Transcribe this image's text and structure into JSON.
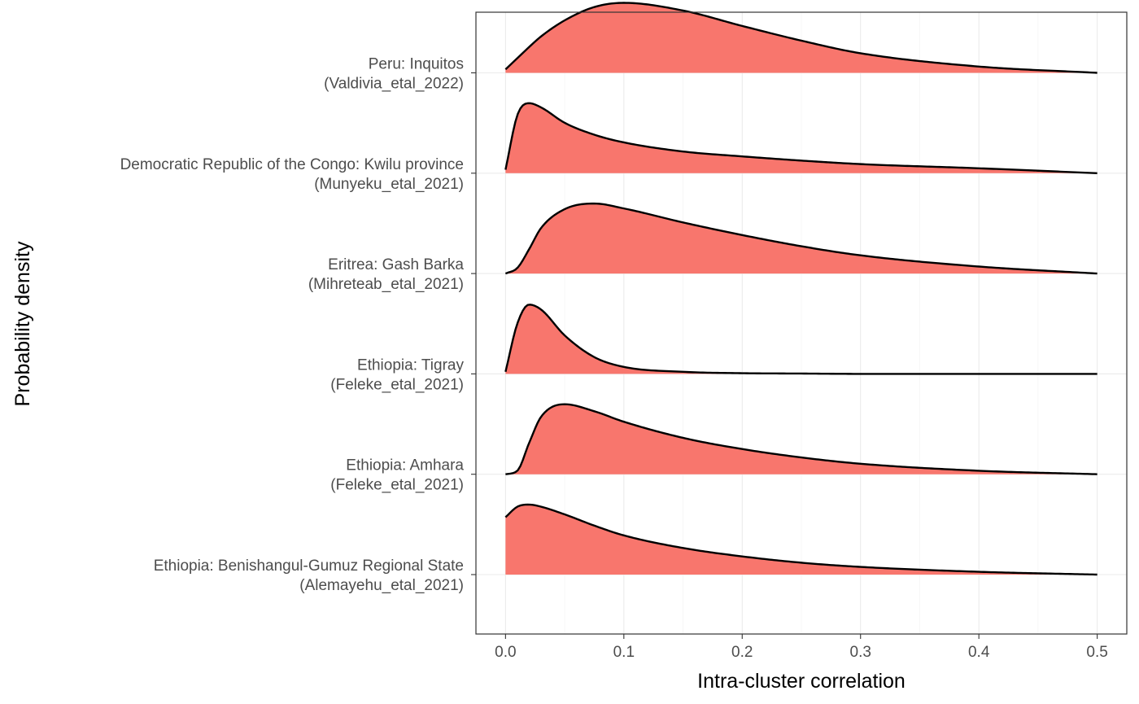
{
  "chart_data": {
    "type": "ridgeline",
    "xlabel": "Intra-cluster correlation",
    "ylabel": "Probability density",
    "xlim": [
      -0.025,
      0.525
    ],
    "x_ticks": [
      0.0,
      0.1,
      0.2,
      0.3,
      0.4,
      0.5
    ],
    "x_tick_labels": [
      "0.0",
      "0.1",
      "0.2",
      "0.3",
      "0.4",
      "0.5"
    ],
    "grid": true,
    "legend": "none",
    "fill_color": "#F8766D",
    "line_color": "#000000",
    "x": [
      0,
      0.01,
      0.02,
      0.03,
      0.05,
      0.075,
      0.1,
      0.15,
      0.2,
      0.25,
      0.3,
      0.4,
      0.5
    ],
    "series": [
      {
        "label_line1": "Peru: Inquitos",
        "label_line2": "(Valdivia_etal_2022)",
        "values": [
          0.05,
          0.21,
          0.37,
          0.52,
          0.75,
          0.94,
          1.0,
          0.89,
          0.67,
          0.46,
          0.28,
          0.09,
          0.0
        ]
      },
      {
        "label_line1": "Democratic Republic of the Congo: Kwilu province",
        "label_line2": "(Munyeku_etal_2021)",
        "values": [
          0.05,
          0.83,
          1.0,
          0.94,
          0.72,
          0.55,
          0.44,
          0.31,
          0.24,
          0.18,
          0.13,
          0.07,
          0.0
        ]
      },
      {
        "label_line1": "Eritrea: Gash Barka",
        "label_line2": "(Mihreteab_etal_2021)",
        "values": [
          0.0,
          0.08,
          0.35,
          0.65,
          0.92,
          1.0,
          0.93,
          0.73,
          0.55,
          0.39,
          0.26,
          0.1,
          0.0
        ]
      },
      {
        "label_line1": "Ethiopia: Tigray",
        "label_line2": "(Feleke_etal_2021)",
        "values": [
          0.03,
          0.72,
          0.99,
          0.92,
          0.55,
          0.24,
          0.1,
          0.03,
          0.01,
          0.005,
          0.0,
          0.0,
          0.0
        ]
      },
      {
        "label_line1": "Ethiopia: Amhara",
        "label_line2": "(Feleke_etal_2021)",
        "values": [
          0.0,
          0.05,
          0.45,
          0.82,
          1.0,
          0.9,
          0.75,
          0.52,
          0.36,
          0.24,
          0.15,
          0.05,
          0.0
        ]
      },
      {
        "label_line1": "Ethiopia: Benishangul-Gumuz Regional State",
        "label_line2": "(Alemayehu_etal_2021)",
        "values": [
          0.82,
          0.97,
          1.0,
          0.97,
          0.86,
          0.7,
          0.56,
          0.38,
          0.26,
          0.17,
          0.11,
          0.04,
          0.0
        ]
      }
    ]
  }
}
